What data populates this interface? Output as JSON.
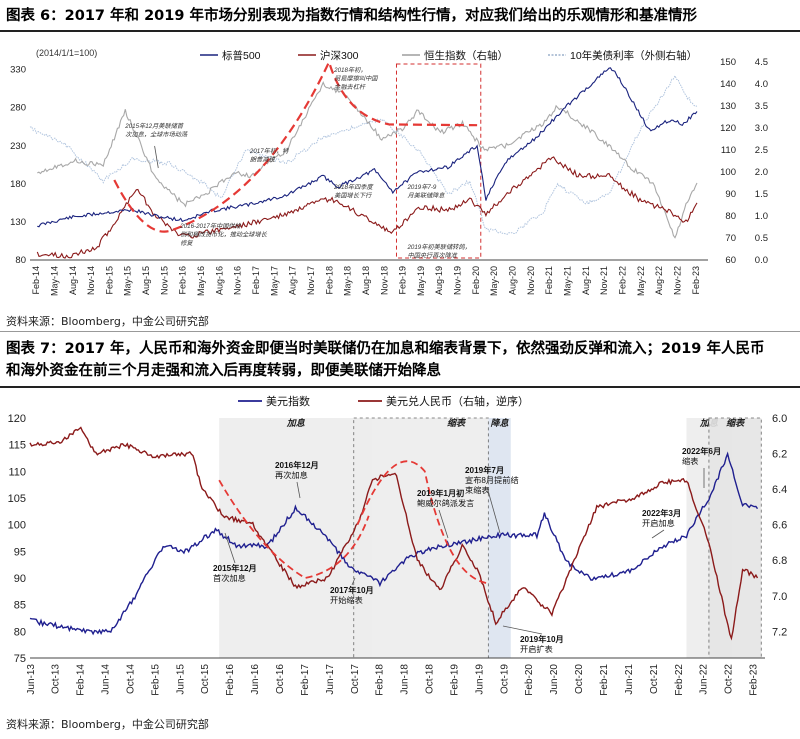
{
  "fig6": {
    "title": "图表 6：2017 年和 2019 年市场分别表现为指数行情和结构性行情，对应我们给出的乐观情形和基准情形",
    "source": "资料来源：Bloomberg，中金公司研究部"
  },
  "fig7": {
    "title_line1": "图表 7：2017 年，人民币和海外资金即便当时美联储仍在加息和缩表背景下，依然强劲反弹和流入；2019 年人民币",
    "title_line2": "和海外资金在前三个月走强和流入后再度转弱，即便美联储开始降息",
    "source": "资料来源：Bloomberg，中金公司研究部"
  },
  "chart_data": [
    {
      "type": "line",
      "note": "(2014/1/1=100)",
      "x_ticks": [
        "Feb-14",
        "May-14",
        "Aug-14",
        "Nov-14",
        "Feb-15",
        "May-15",
        "Aug-15",
        "Nov-15",
        "Feb-16",
        "May-16",
        "Aug-16",
        "Nov-16",
        "Feb-17",
        "May-17",
        "Aug-17",
        "Nov-17",
        "Feb-18",
        "May-18",
        "Aug-18",
        "Nov-18",
        "Feb-19",
        "May-19",
        "Aug-19",
        "Nov-19",
        "Feb-20",
        "May-20",
        "Aug-20",
        "Nov-20",
        "Feb-21",
        "May-21",
        "Aug-21",
        "Nov-21",
        "Feb-22",
        "May-22",
        "Aug-22",
        "Nov-22",
        "Feb-23"
      ],
      "y_left": {
        "ticks": [
          "330",
          "280",
          "230",
          "180",
          "130",
          "80"
        ],
        "ylim": [
          80,
          340
        ]
      },
      "y_mid": {
        "ticks": [
          "150",
          "140",
          "130",
          "120",
          "110",
          "100",
          "90",
          "80",
          "70",
          "60"
        ],
        "ylim": [
          60,
          150
        ]
      },
      "y_right": {
        "ticks": [
          "4.5",
          "4.0",
          "3.5",
          "3.0",
          "2.5",
          "2.0",
          "1.5",
          "1.0",
          "0.5",
          "0.0"
        ],
        "ylim": [
          0,
          4.5
        ]
      },
      "series": [
        {
          "name": "标普500",
          "color": "#1a237e",
          "axis": "left",
          "x": [
            2014.1,
            2014.5,
            2015.0,
            2015.4,
            2015.7,
            2016.1,
            2016.5,
            2017.0,
            2017.5,
            2018.0,
            2018.2,
            2018.7,
            2018.95,
            2019.3,
            2019.7,
            2020.1,
            2020.22,
            2020.5,
            2020.9,
            2021.3,
            2021.9,
            2022.0,
            2022.45,
            2022.75,
            2022.9,
            2023.1
          ],
          "values": [
            125,
            135,
            142,
            146,
            138,
            132,
            145,
            153,
            165,
            190,
            176,
            198,
            170,
            196,
            202,
            230,
            160,
            210,
            240,
            280,
            332,
            325,
            250,
            265,
            258,
            275
          ]
        },
        {
          "name": "沪深300",
          "color": "#8b1a1a",
          "axis": "left",
          "x": [
            2014.1,
            2014.5,
            2014.9,
            2015.2,
            2015.45,
            2015.7,
            2016.0,
            2016.2,
            2016.6,
            2017.0,
            2017.5,
            2017.9,
            2018.1,
            2018.5,
            2018.95,
            2019.3,
            2019.7,
            2020.0,
            2020.22,
            2020.6,
            2020.9,
            2021.1,
            2021.5,
            2021.9,
            2022.3,
            2022.8,
            2022.95,
            2023.1
          ],
          "values": [
            88,
            85,
            95,
            135,
            175,
            140,
            115,
            112,
            120,
            128,
            140,
            155,
            160,
            140,
            115,
            150,
            145,
            160,
            140,
            175,
            195,
            215,
            190,
            190,
            160,
            140,
            130,
            155
          ]
        },
        {
          "name": "恒生指数（右轴）",
          "color": "#9e9e9e",
          "axis": "mid",
          "x": [
            2014.1,
            2014.6,
            2015.0,
            2015.3,
            2015.7,
            2016.1,
            2016.4,
            2016.8,
            2017.0,
            2017.5,
            2018.0,
            2018.3,
            2018.8,
            2019.1,
            2019.3,
            2019.6,
            2019.9,
            2020.2,
            2020.5,
            2021.0,
            2021.2,
            2021.6,
            2021.9,
            2022.2,
            2022.5,
            2022.8,
            2022.95,
            2023.1
          ],
          "values": [
            100,
            105,
            103,
            128,
            98,
            85,
            90,
            100,
            98,
            110,
            140,
            135,
            115,
            120,
            128,
            118,
            122,
            110,
            112,
            122,
            130,
            120,
            112,
            102,
            95,
            70,
            85,
            95
          ]
        },
        {
          "name": "10年美债利率（外侧右轴）",
          "color": "#b0c4de",
          "axis": "right",
          "x": [
            2014.0,
            2014.5,
            2015.0,
            2015.4,
            2015.9,
            2016.4,
            2016.6,
            2016.95,
            2017.5,
            2018.0,
            2018.8,
            2019.3,
            2019.7,
            2020.0,
            2020.22,
            2020.6,
            2021.0,
            2021.2,
            2021.6,
            2021.9,
            2022.3,
            2022.8,
            2022.95,
            2023.1
          ],
          "values": [
            3.0,
            2.6,
            1.8,
            2.3,
            2.2,
            1.7,
            1.4,
            2.5,
            2.2,
            2.8,
            3.2,
            2.5,
            1.5,
            1.8,
            0.7,
            0.6,
            1.1,
            1.7,
            1.3,
            1.5,
            2.9,
            4.2,
            3.7,
            3.5
          ]
        }
      ],
      "annotations": [
        "2015年12月美联储首次加息，全球市场动荡",
        "2016-2017年中国供给侧和棚改货币化，推动全球增长修复",
        "2017年初，特朗普减税",
        "2018年初，贸易摩擦叫中国金融去杠杆",
        "2018年四季度美国增长下行",
        "2019年7-9月美联储降息",
        "2019年初美联储转鸽，中国央行再次降准"
      ]
    },
    {
      "type": "line",
      "x_ticks": [
        "Jun-13",
        "Oct-13",
        "Feb-14",
        "Jun-14",
        "Oct-14",
        "Feb-15",
        "Jun-15",
        "Oct-15",
        "Feb-16",
        "Jun-16",
        "Oct-16",
        "Feb-17",
        "Jun-17",
        "Oct-17",
        "Feb-18",
        "Jun-18",
        "Oct-18",
        "Feb-19",
        "Jun-19",
        "Oct-19",
        "Feb-20",
        "Jun-20",
        "Oct-20",
        "Feb-21",
        "Jun-21",
        "Oct-21",
        "Feb-22",
        "Jun-22",
        "Oct-22",
        "Feb-23"
      ],
      "y_left": {
        "ticks": [
          "120",
          "115",
          "110",
          "105",
          "100",
          "95",
          "90",
          "85",
          "80",
          "75"
        ],
        "ylim": [
          75,
          120
        ]
      },
      "y_right": {
        "ticks": [
          "6.0",
          "6.2",
          "6.4",
          "6.6",
          "6.8",
          "7.0",
          "7.2"
        ],
        "ylim": [
          6.0,
          7.35
        ],
        "inverted": true
      },
      "shaded_periods": [
        {
          "label": "加息",
          "from": 2015.95,
          "to": 2018.0
        },
        {
          "label": "缩表",
          "from": 2017.75,
          "to": 2019.55
        },
        {
          "label": "降息",
          "from": 2019.55,
          "to": 2019.85,
          "fill": "#dbe3f0"
        },
        {
          "label": "加息",
          "from": 2022.2,
          "to": 2022.8
        },
        {
          "label": "缩表",
          "from": 2022.5,
          "to": 2023.2
        }
      ],
      "series": [
        {
          "name": "美元指数",
          "color": "#1f1f8f",
          "axis": "left",
          "x": [
            2013.42,
            2013.8,
            2014.2,
            2014.5,
            2014.8,
            2015.2,
            2015.5,
            2015.9,
            2016.2,
            2016.6,
            2016.97,
            2017.3,
            2017.7,
            2018.1,
            2018.5,
            2018.9,
            2019.3,
            2019.7,
            2020.2,
            2020.3,
            2020.6,
            2020.9,
            2021.4,
            2021.9,
            2022.2,
            2022.5,
            2022.75,
            2022.95,
            2023.15
          ],
          "values": [
            82,
            81,
            80,
            80,
            86,
            96,
            95,
            99,
            96,
            96,
            103,
            99,
            92,
            89,
            94,
            96,
            97,
            98,
            98,
            102,
            93,
            90,
            91,
            96,
            98,
            105,
            113,
            104,
            103
          ]
        },
        {
          "name": "美元兑人民币（右轴，逆序）",
          "color": "#8b1a1a",
          "axis": "right",
          "x": [
            2013.42,
            2013.8,
            2014.1,
            2014.3,
            2014.7,
            2015.1,
            2015.6,
            2015.7,
            2016.0,
            2016.4,
            2016.97,
            2017.4,
            2017.8,
            2018.0,
            2018.3,
            2018.6,
            2018.9,
            2019.2,
            2019.4,
            2019.65,
            2020.0,
            2020.4,
            2020.7,
            2021.0,
            2021.5,
            2021.9,
            2022.2,
            2022.5,
            2022.8,
            2022.95,
            2023.15
          ],
          "values": [
            6.15,
            6.14,
            6.06,
            6.2,
            6.15,
            6.22,
            6.2,
            6.38,
            6.55,
            6.6,
            6.95,
            6.9,
            6.6,
            6.35,
            6.3,
            6.8,
            6.97,
            6.72,
            6.85,
            7.15,
            6.95,
            7.1,
            6.8,
            6.5,
            6.45,
            6.36,
            6.35,
            6.7,
            7.25,
            6.85,
            6.9
          ]
        }
      ],
      "annotations": [
        {
          "title": "2015年12月",
          "text": "首次加息"
        },
        {
          "title": "2016年12月",
          "text": "再次加息"
        },
        {
          "title": "2017年10月",
          "text": "开始缩表"
        },
        {
          "title": "2019年1月初",
          "text": "鲍威尔鸽派发言"
        },
        {
          "title": "2019年7月",
          "text": "宣布8月提前结束缩表"
        },
        {
          "title": "2019年10月",
          "text": "开启扩表"
        },
        {
          "title": "2022年3月",
          "text": "开启加息"
        },
        {
          "title": "2022年6月",
          "text": "缩表"
        }
      ]
    }
  ]
}
